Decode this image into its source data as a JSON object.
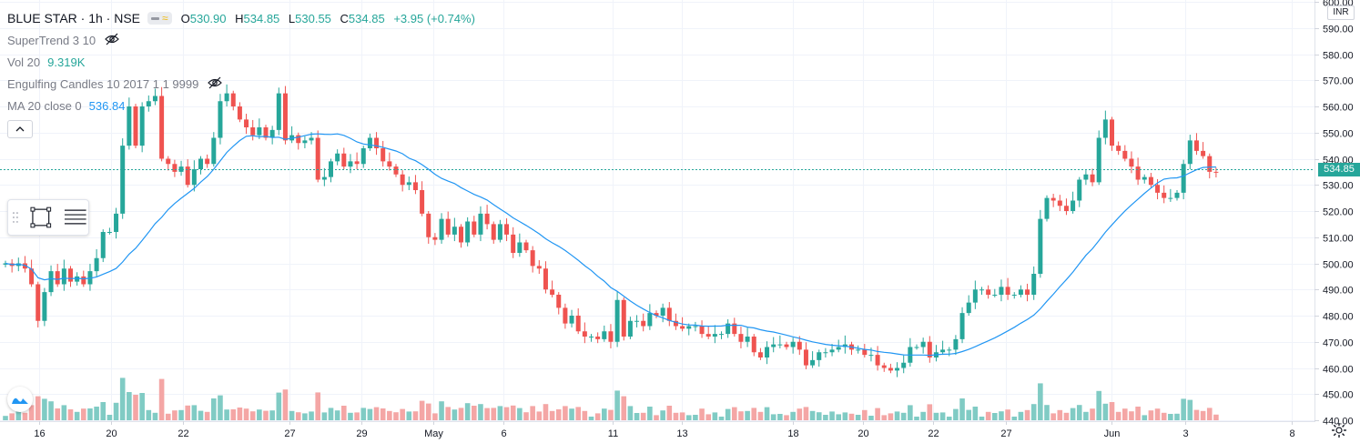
{
  "header": {
    "symbol": "BLUE STAR · 1h · NSE",
    "open_label": "O",
    "open": "530.90",
    "high_label": "H",
    "high": "534.85",
    "low_label": "L",
    "low": "530.55",
    "close_label": "C",
    "close": "534.85",
    "change": "+3.95 (+0.74%)"
  },
  "indicators": [
    {
      "name": "SuperTrend 3 10",
      "value": "",
      "icon": "eye-hidden-icon"
    },
    {
      "name": "Vol 20",
      "value": "9.319K"
    },
    {
      "name": "Engulfing Candles 10 2017 1 1 9999",
      "value": "",
      "icon": "eye-hidden-icon"
    },
    {
      "name": "MA 20 close 0",
      "value": "536.84"
    }
  ],
  "price_axis": {
    "currency": "INR",
    "ticks": [
      "600.00",
      "590.00",
      "580.00",
      "570.00",
      "560.00",
      "550.00",
      "540.00",
      "530.00",
      "520.00",
      "510.00",
      "500.00",
      "490.00",
      "480.00",
      "470.00",
      "460.00",
      "450.00",
      "440.00"
    ],
    "last_price": "534.85"
  },
  "time_axis": {
    "ticks": [
      "16",
      "20",
      "22",
      "27",
      "29",
      "May",
      "6",
      "11",
      "13",
      "18",
      "20",
      "22",
      "27",
      "Jun",
      "3",
      "8"
    ]
  },
  "colors": {
    "up": "#26a69a",
    "down": "#ef5350",
    "ma": "#2196f3",
    "vol_up": "#80cbc4",
    "vol_down": "#f4a6a5",
    "grid": "#f0f3fa"
  },
  "icons": [
    "eye-hidden-icon",
    "chevron-up-icon",
    "drag-handle-icon",
    "rectangle-tool-icon",
    "lines-icon",
    "tradingview-logo-icon",
    "settings-gear-icon"
  ],
  "chart_data": {
    "type": "candlestick",
    "title": "BLUE STAR · 1h · NSE",
    "ylim": [
      440,
      600
    ],
    "x_ticks": [
      "16",
      "20",
      "22",
      "27",
      "29",
      "May",
      "6",
      "11",
      "13",
      "18",
      "20",
      "22",
      "27",
      "Jun",
      "3",
      "8"
    ],
    "series": [
      {
        "name": "BLUE STAR",
        "closes": [
          500,
          499,
          500,
          498,
          492,
          478,
          489,
          497,
          492,
          498,
          493,
          495,
          492,
          497,
          502,
          512,
          512,
          519,
          545,
          560,
          545,
          560,
          562,
          564,
          540,
          538,
          535,
          537,
          530,
          536,
          540,
          538,
          548,
          562,
          565,
          560,
          555,
          552,
          549,
          552,
          548,
          551,
          565,
          547,
          549,
          546,
          547,
          548,
          532,
          533,
          539,
          542,
          537,
          539,
          538,
          544,
          548,
          544,
          539,
          537,
          534,
          530,
          531,
          528,
          519,
          510,
          509,
          517,
          511,
          514,
          508,
          516,
          511,
          519,
          515,
          509,
          515,
          511,
          504,
          508,
          505,
          499,
          498,
          490,
          488,
          483,
          477,
          480,
          474,
          472,
          472,
          471,
          474,
          470,
          486,
          472,
          478,
          478,
          476,
          481,
          480,
          483,
          478,
          476,
          475,
          476,
          476,
          473,
          472,
          473,
          473,
          477,
          473,
          470,
          472,
          466,
          464,
          468,
          469,
          469,
          468,
          470,
          467,
          461,
          463,
          466,
          466,
          467,
          468,
          469,
          467,
          467,
          465,
          465,
          461,
          460,
          459,
          460,
          462,
          468,
          468,
          470,
          464,
          466,
          467,
          467,
          471,
          481,
          485,
          490,
          490,
          488,
          488,
          491,
          488,
          488,
          490,
          488,
          496,
          517,
          525,
          524,
          522,
          520,
          524,
          532,
          534,
          531,
          548,
          555,
          545,
          543,
          540,
          537,
          532,
          533,
          530,
          527,
          525,
          525,
          527,
          538,
          547,
          543,
          541,
          535,
          534.85
        ],
        "ma20_last": 536.84
      },
      {
        "name": "Vol 20",
        "last": "9.319K"
      }
    ]
  }
}
